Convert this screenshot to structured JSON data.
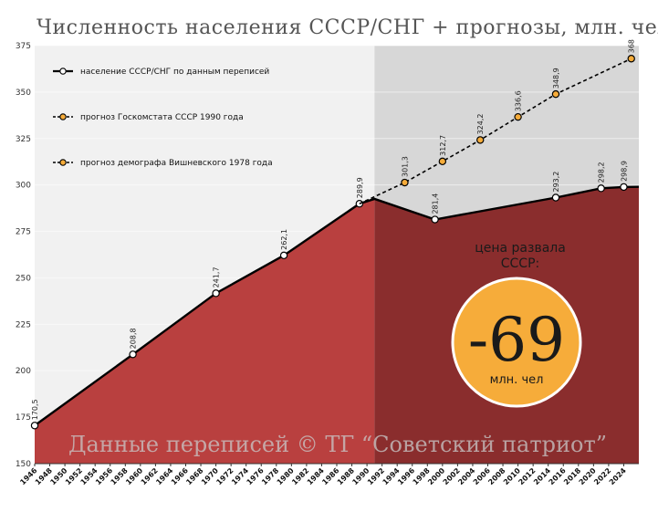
{
  "title": "Численность населения СССР/СНГ + прогнозы, млн. чел",
  "watermark": "Данные переписей © ТГ “Советский патриот”",
  "callout": {
    "caption_line1": "цена развала",
    "caption_line2": "СССР:",
    "value": "-69",
    "unit": "млн. чел",
    "circle_color": "#f6ac3a"
  },
  "colors": {
    "area_census": "#b9403f",
    "area_shaded": "#8a2d2d",
    "bg_left": "#f1f1f1",
    "bg_right": "#d7d7d7",
    "line": "#000000",
    "forecast_marker": "#f6ac3a"
  },
  "chart_data": {
    "type": "line",
    "ylim": [
      150,
      375
    ],
    "yticks": [
      "150",
      "175",
      "200",
      "225",
      "250",
      "275",
      "300",
      "325",
      "350",
      "375"
    ],
    "xlim": [
      1946,
      2026
    ],
    "xticks": [
      "1946",
      "1948",
      "1950",
      "1952",
      "1954",
      "1956",
      "1958",
      "1960",
      "1962",
      "1964",
      "1966",
      "1968",
      "1970",
      "1972",
      "1974",
      "1976",
      "1978",
      "1980",
      "1982",
      "1984",
      "1986",
      "1988",
      "1990",
      "1992",
      "1994",
      "1996",
      "1998",
      "2000",
      "2002",
      "2004",
      "2006",
      "2008",
      "2010",
      "2012",
      "2014",
      "2016",
      "2018",
      "2020",
      "2022",
      "2024"
    ],
    "shaded_from_year": 1991,
    "series": [
      {
        "name": "население СССР/СНГ по данным переписей",
        "style": "solid",
        "points": [
          {
            "x": 1946,
            "y": 170.5,
            "label": "170,5",
            "marker": true
          },
          {
            "x": 1959,
            "y": 208.8,
            "label": "208,8",
            "marker": true
          },
          {
            "x": 1970,
            "y": 241.7,
            "label": "241,7",
            "marker": true
          },
          {
            "x": 1979,
            "y": 262.1,
            "label": "262,1",
            "marker": true
          },
          {
            "x": 1989,
            "y": 289.9,
            "label": "289,9",
            "marker": true
          },
          {
            "x": 1991,
            "y": 292.5,
            "label": "",
            "marker": false
          },
          {
            "x": 1999,
            "y": 281.4,
            "label": "281,4",
            "marker": true
          },
          {
            "x": 2015,
            "y": 293.2,
            "label": "293,2",
            "marker": true
          },
          {
            "x": 2021,
            "y": 298.2,
            "label": "298,2",
            "marker": true
          },
          {
            "x": 2024,
            "y": 298.9,
            "label": "298,9",
            "marker": true
          },
          {
            "x": 2026,
            "y": 299.0,
            "label": "",
            "marker": false
          }
        ]
      },
      {
        "name": "прогноз Госкомстата СССР 1990 года",
        "style": "dashed",
        "points": [
          {
            "x": 1989,
            "y": 289.9,
            "label": "",
            "marker": false
          },
          {
            "x": 1995,
            "y": 301.3,
            "label": "301,3",
            "marker": true
          },
          {
            "x": 2000,
            "y": 312.7,
            "label": "312,7",
            "marker": true
          },
          {
            "x": 2005,
            "y": 324.2,
            "label": "324,2",
            "marker": true
          },
          {
            "x": 2010,
            "y": 336.6,
            "label": "336,6",
            "marker": true
          },
          {
            "x": 2015,
            "y": 348.9,
            "label": "348,9",
            "marker": true
          },
          {
            "x": 2025,
            "y": 368.0,
            "label": "368",
            "marker": true
          }
        ]
      },
      {
        "name": "прогноз демографа Вишневского 1978 года",
        "style": "dashed",
        "points": []
      }
    ]
  }
}
